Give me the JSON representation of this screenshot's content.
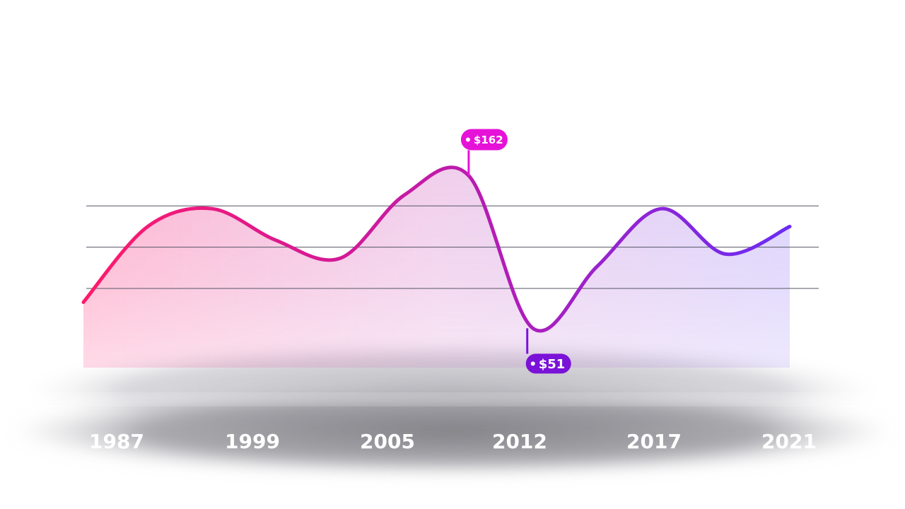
{
  "chart_data": {
    "type": "line",
    "x": [
      "1987",
      "",
      "",
      "1999",
      "",
      "2005",
      "",
      "2012",
      "",
      "2017",
      "",
      "2021"
    ],
    "values": [
      70,
      125,
      138,
      115,
      102,
      148,
      162,
      51,
      96,
      138,
      105,
      125
    ],
    "ylim": [
      0,
      220
    ],
    "grid": true,
    "gridlines": [
      80,
      110,
      140
    ],
    "annotations": [
      {
        "label": "$162",
        "point_index": 6,
        "value": 162,
        "position": "above"
      },
      {
        "label": "$51",
        "point_index": 7,
        "value": 51,
        "position": "below"
      }
    ],
    "x_tick_labels": [
      "1987",
      "1999",
      "2005",
      "2012",
      "2017",
      "2021"
    ],
    "colors": {
      "line_start": "#ff1a6b",
      "line_mid": "#c21aa8",
      "line_end": "#6a2cf5",
      "callout_high": "#e612d8",
      "callout_low": "#7a12d8",
      "gridline": "#555566",
      "base_shadow": "#8a8a90"
    }
  }
}
